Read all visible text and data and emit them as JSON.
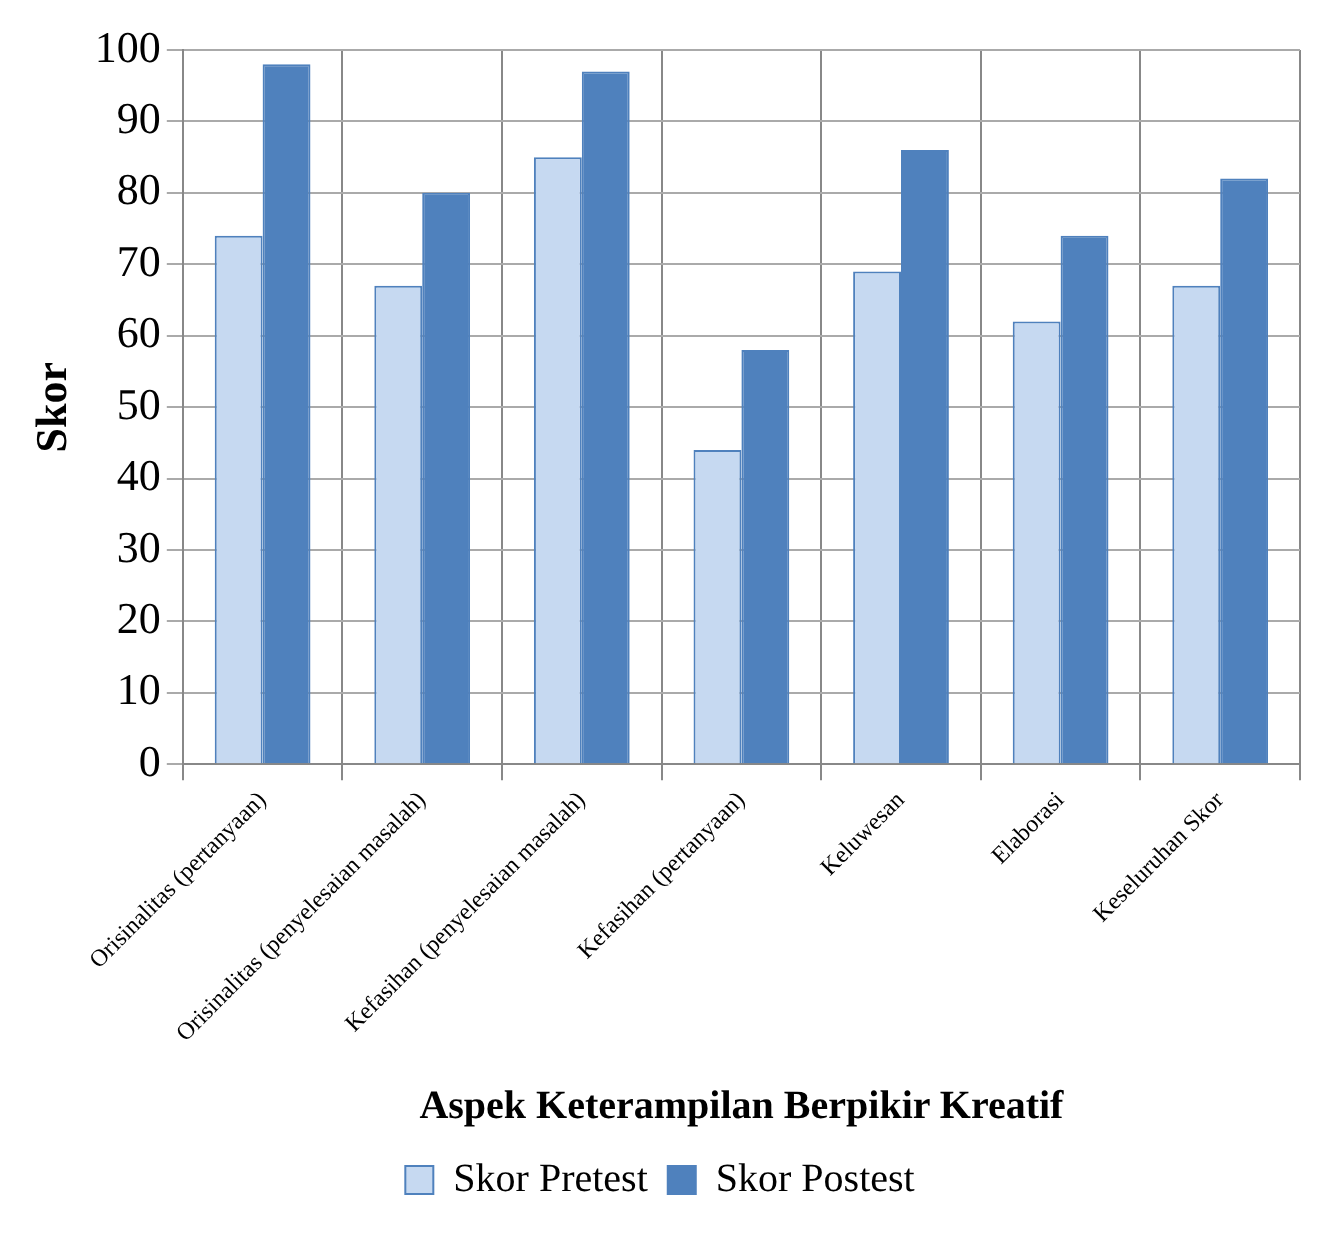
{
  "chart_data": {
    "type": "bar",
    "xlabel": "Aspek Keterampilan Berpikir Kreatif",
    "ylabel": "Skor",
    "categories": [
      "Orisinalitas (pertanyaan)",
      "Orisinalitas (penyelesaian masalah)",
      "Kefasihan (penyelesaian masalah)",
      "Kefasihan (pertanyaan)",
      "Keluwesan",
      "Elaborasi",
      "Keseluruhan Skor"
    ],
    "series": [
      {
        "name": "Skor Pretest",
        "color": "#c6d9f1",
        "values": [
          74,
          67,
          85,
          44,
          69,
          62,
          67
        ]
      },
      {
        "name": "Skor Postest",
        "color": "#4f81bd",
        "values": [
          98,
          80,
          97,
          58,
          86,
          74,
          82
        ]
      }
    ],
    "ylim": [
      0,
      100
    ],
    "yticks": [
      0,
      10,
      20,
      30,
      40,
      50,
      60,
      70,
      80,
      90,
      100
    ],
    "grid": true,
    "legend": "bottom"
  }
}
